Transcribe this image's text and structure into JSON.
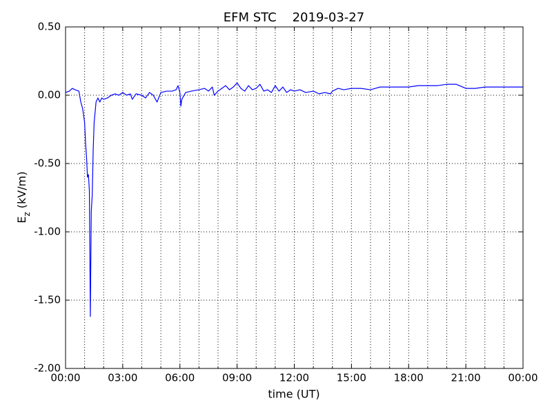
{
  "chart_data": {
    "type": "line",
    "title": "EFM STC    2019-03-27",
    "xlabel": "time (UT)",
    "ylabel": {
      "main": "E",
      "sub": "z",
      "unit": " (kV/m)"
    },
    "xlim": [
      0,
      24
    ],
    "ylim": [
      -2.0,
      0.5
    ],
    "xticks": [
      {
        "value": 0,
        "label": "00:00"
      },
      {
        "value": 3,
        "label": "03:00"
      },
      {
        "value": 6,
        "label": "06:00"
      },
      {
        "value": 9,
        "label": "09:00"
      },
      {
        "value": 12,
        "label": "12:00"
      },
      {
        "value": 15,
        "label": "15:00"
      },
      {
        "value": 18,
        "label": "18:00"
      },
      {
        "value": 21,
        "label": "21:00"
      },
      {
        "value": 24,
        "label": "00:00"
      }
    ],
    "xminorticks": [
      1,
      2,
      4,
      5,
      7,
      8,
      10,
      11,
      13,
      14,
      16,
      17,
      19,
      20,
      22,
      23
    ],
    "yticks": [
      {
        "value": 0.5,
        "label": "0.50"
      },
      {
        "value": 0,
        "label": "0.00"
      },
      {
        "value": -0.5,
        "label": "-0.50"
      },
      {
        "value": -1.0,
        "label": "-1.00"
      },
      {
        "value": -1.5,
        "label": "-1.50"
      },
      {
        "value": -2.0,
        "label": "-2.00"
      }
    ],
    "grid": true,
    "series": [
      {
        "color": "#0000ff",
        "x": [
          0,
          0.2,
          0.35,
          0.5,
          0.7,
          0.8,
          0.9,
          1.0,
          1.05,
          1.1,
          1.15,
          1.2,
          1.25,
          1.3,
          1.35,
          1.4,
          1.45,
          1.5,
          1.6,
          1.7,
          1.8,
          1.9,
          2.0,
          2.2,
          2.4,
          2.6,
          2.8,
          3.0,
          3.2,
          3.4,
          3.5,
          3.7,
          4.0,
          4.2,
          4.4,
          4.6,
          4.8,
          5.0,
          5.3,
          5.6,
          5.8,
          5.9,
          6.0,
          6.05,
          6.1,
          6.3,
          6.6,
          7.0,
          7.3,
          7.5,
          7.7,
          7.8,
          8.0,
          8.2,
          8.4,
          8.6,
          8.8,
          9.0,
          9.2,
          9.4,
          9.6,
          9.8,
          10.0,
          10.2,
          10.4,
          10.6,
          10.8,
          11.0,
          11.2,
          11.4,
          11.6,
          11.8,
          12.0,
          12.3,
          12.6,
          13.0,
          13.3,
          13.6,
          13.9,
          14.0,
          14.3,
          14.6,
          15.0,
          15.5,
          16.0,
          16.5,
          17.0,
          17.5,
          18.0,
          18.5,
          19.0,
          19.5,
          20.0,
          20.5,
          21.0,
          21.5,
          22.0,
          22.5,
          23.0,
          23.5,
          24.0
        ],
        "values": [
          0.02,
          0.03,
          0.05,
          0.04,
          0.03,
          -0.05,
          -0.1,
          -0.2,
          -0.35,
          -0.45,
          -0.6,
          -0.58,
          -0.7,
          -1.62,
          -0.85,
          -0.73,
          -0.4,
          -0.2,
          -0.05,
          -0.02,
          -0.05,
          -0.02,
          -0.03,
          -0.02,
          0.0,
          0.01,
          0.0,
          0.02,
          0.0,
          0.01,
          -0.03,
          0.01,
          0.0,
          -0.02,
          0.02,
          0.0,
          -0.05,
          0.02,
          0.03,
          0.03,
          0.04,
          0.07,
          0.02,
          -0.08,
          -0.03,
          0.02,
          0.03,
          0.04,
          0.05,
          0.03,
          0.06,
          0.0,
          0.03,
          0.05,
          0.07,
          0.04,
          0.06,
          0.09,
          0.05,
          0.03,
          0.07,
          0.04,
          0.05,
          0.08,
          0.03,
          0.04,
          0.02,
          0.07,
          0.03,
          0.06,
          0.02,
          0.04,
          0.03,
          0.04,
          0.02,
          0.03,
          0.01,
          0.02,
          0.01,
          0.03,
          0.05,
          0.04,
          0.05,
          0.05,
          0.04,
          0.06,
          0.06,
          0.06,
          0.06,
          0.07,
          0.07,
          0.07,
          0.08,
          0.08,
          0.05,
          0.05,
          0.06,
          0.06,
          0.06,
          0.06,
          0.06
        ]
      }
    ]
  }
}
